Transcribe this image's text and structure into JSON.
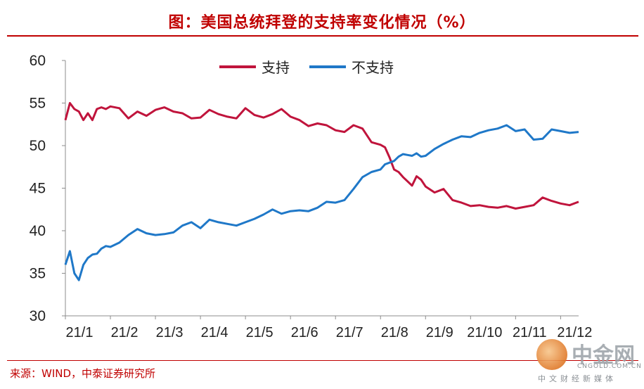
{
  "header": {
    "title": "图：美国总统拜登的支持率变化情况（%）"
  },
  "footer": {
    "source": "来源：WIND，中泰证券研究所"
  },
  "watermark": {
    "name": "中金网",
    "domain": "CNGOLD.COM.CN",
    "tagline": "中文财经新媒体"
  },
  "colors": {
    "support": "#c0143c",
    "oppose": "#1f78c8",
    "accent": "#c00000"
  },
  "chart_data": {
    "type": "line",
    "title": "图：美国总统拜登的支持率变化情况（%）",
    "xlabel": "",
    "ylabel": "",
    "ylim": [
      30,
      60
    ],
    "yticks": [
      30,
      35,
      40,
      45,
      50,
      55,
      60
    ],
    "x_ticks": [
      "21/1",
      "21/2",
      "21/3",
      "21/4",
      "21/5",
      "21/6",
      "21/7",
      "21/8",
      "21/9",
      "21/10",
      "21/11",
      "21/12"
    ],
    "grid": false,
    "legend": "top-center",
    "x": [
      0.0,
      0.1,
      0.2,
      0.3,
      0.4,
      0.5,
      0.6,
      0.7,
      0.8,
      0.9,
      1.0,
      1.2,
      1.4,
      1.6,
      1.8,
      2.0,
      2.2,
      2.4,
      2.6,
      2.8,
      3.0,
      3.2,
      3.4,
      3.6,
      3.8,
      4.0,
      4.2,
      4.4,
      4.6,
      4.8,
      5.0,
      5.2,
      5.4,
      5.6,
      5.8,
      6.0,
      6.2,
      6.4,
      6.6,
      6.8,
      7.0,
      7.1,
      7.2,
      7.3,
      7.4,
      7.5,
      7.6,
      7.7,
      7.8,
      7.9,
      8.0,
      8.2,
      8.4,
      8.6,
      8.8,
      9.0,
      9.2,
      9.4,
      9.6,
      9.8,
      10.0,
      10.2,
      10.4,
      10.6,
      10.8,
      11.0,
      11.2,
      11.4
    ],
    "series": [
      {
        "name": "支持",
        "values": [
          53.0,
          55.0,
          54.3,
          54.0,
          53.0,
          53.8,
          53.0,
          54.3,
          54.5,
          54.3,
          54.6,
          54.4,
          53.2,
          54.0,
          53.5,
          54.2,
          54.5,
          54.0,
          53.8,
          53.2,
          53.3,
          54.2,
          53.7,
          53.4,
          53.2,
          54.4,
          53.6,
          53.3,
          53.7,
          54.3,
          53.4,
          53.0,
          52.3,
          52.6,
          52.4,
          51.8,
          51.6,
          52.4,
          52.0,
          50.4,
          50.1,
          49.8,
          48.6,
          47.2,
          46.9,
          46.3,
          45.8,
          45.3,
          46.4,
          46.0,
          45.2,
          44.5,
          44.9,
          43.6,
          43.3,
          42.9,
          43.0,
          42.8,
          42.7,
          42.9,
          42.6,
          42.8,
          43.0,
          43.9,
          43.5,
          43.2,
          43.0,
          43.4
        ]
      },
      {
        "name": "不支持",
        "values": [
          36.0,
          37.6,
          35.0,
          34.2,
          36.0,
          36.8,
          37.2,
          37.3,
          37.9,
          38.2,
          38.1,
          38.6,
          39.5,
          40.2,
          39.7,
          39.5,
          39.6,
          39.8,
          40.6,
          41.0,
          40.3,
          41.3,
          41.0,
          40.8,
          40.6,
          41.0,
          41.4,
          41.9,
          42.5,
          42.0,
          42.3,
          42.4,
          42.3,
          42.7,
          43.4,
          43.3,
          43.6,
          44.9,
          46.3,
          46.9,
          47.2,
          47.8,
          48.0,
          48.2,
          48.7,
          49.0,
          48.9,
          48.8,
          49.1,
          48.7,
          48.8,
          49.6,
          50.2,
          50.7,
          51.1,
          51.0,
          51.5,
          51.8,
          52.0,
          52.4,
          51.7,
          51.9,
          50.7,
          50.8,
          51.9,
          51.7,
          51.5,
          51.6
        ]
      }
    ]
  }
}
